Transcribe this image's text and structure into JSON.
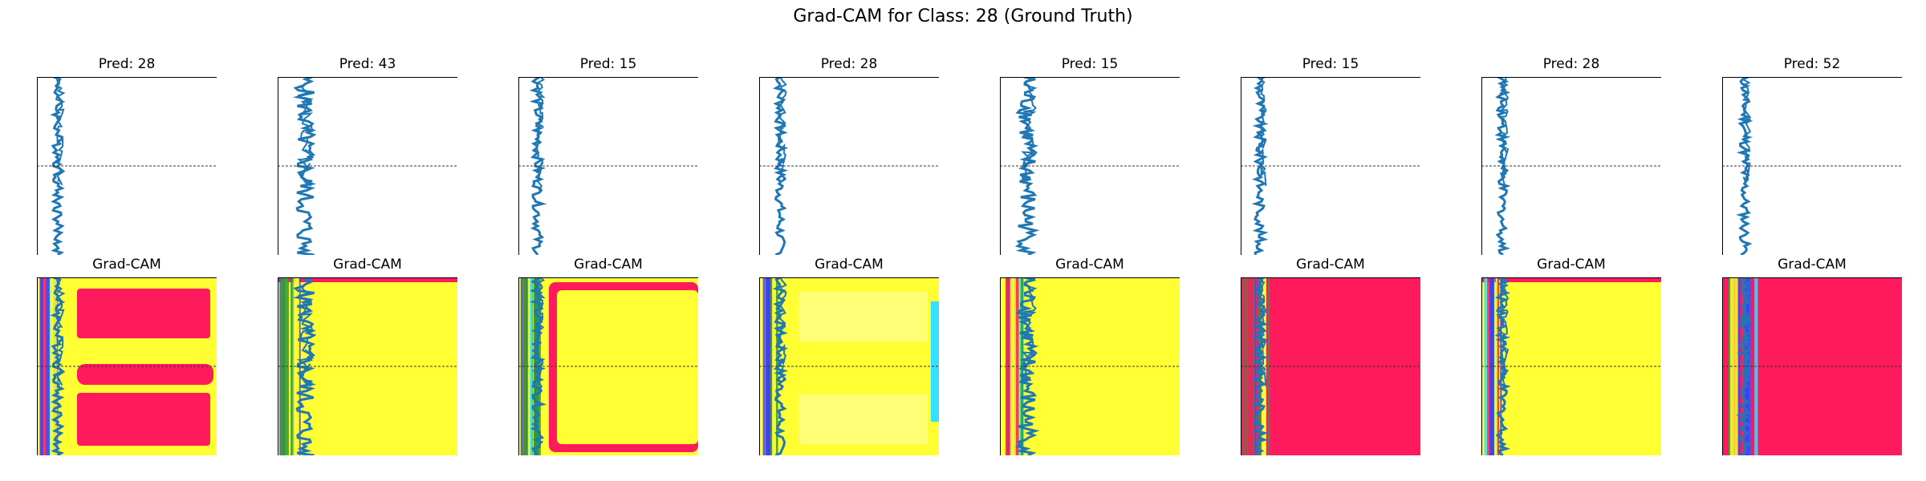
{
  "chart_data": {
    "type": "line",
    "title": "Grad-CAM for Class: 28 (Ground Truth)",
    "ground_truth_class": 28,
    "heatmap_title": "Grad-CAM",
    "panels": [
      {
        "index": 1,
        "pred_label": "Pred: 28",
        "pred": 28,
        "cam_pattern": "bands",
        "cam_hot": "left"
      },
      {
        "index": 2,
        "pred_label": "Pred: 43",
        "pred": 43,
        "cam_pattern": "yellow",
        "cam_hot": "left"
      },
      {
        "index": 3,
        "pred_label": "Pred: 15",
        "pred": 15,
        "cam_pattern": "frame",
        "cam_hot": "left"
      },
      {
        "index": 4,
        "pred_label": "Pred: 28",
        "pred": 28,
        "cam_pattern": "pale",
        "cam_hot": "left"
      },
      {
        "index": 5,
        "pred_label": "Pred: 15",
        "pred": 15,
        "cam_pattern": "yellow-green",
        "cam_hot": "left"
      },
      {
        "index": 6,
        "pred_label": "Pred: 15",
        "pred": 15,
        "cam_pattern": "red",
        "cam_hot": "left"
      },
      {
        "index": 7,
        "pred_label": "Pred: 28",
        "pred": 28,
        "cam_pattern": "yellow",
        "cam_hot": "left"
      },
      {
        "index": 8,
        "pred_label": "Pred: 52",
        "pred": 52,
        "cam_pattern": "red",
        "cam_hot": "left"
      }
    ],
    "xlabel": "",
    "ylabel": "",
    "grid": false,
    "reference_line": "dashed horizontal at midpoint"
  },
  "colors": {
    "signal": "#1f77b4",
    "cam_yellow": "#ffff33",
    "cam_pale": "#ffff77",
    "cam_red": "#ff1a5e",
    "cam_green": "#2a9d3a",
    "cam_blue": "#3b3bff",
    "cam_cyan": "#33e0ff",
    "refline": "#333333"
  }
}
